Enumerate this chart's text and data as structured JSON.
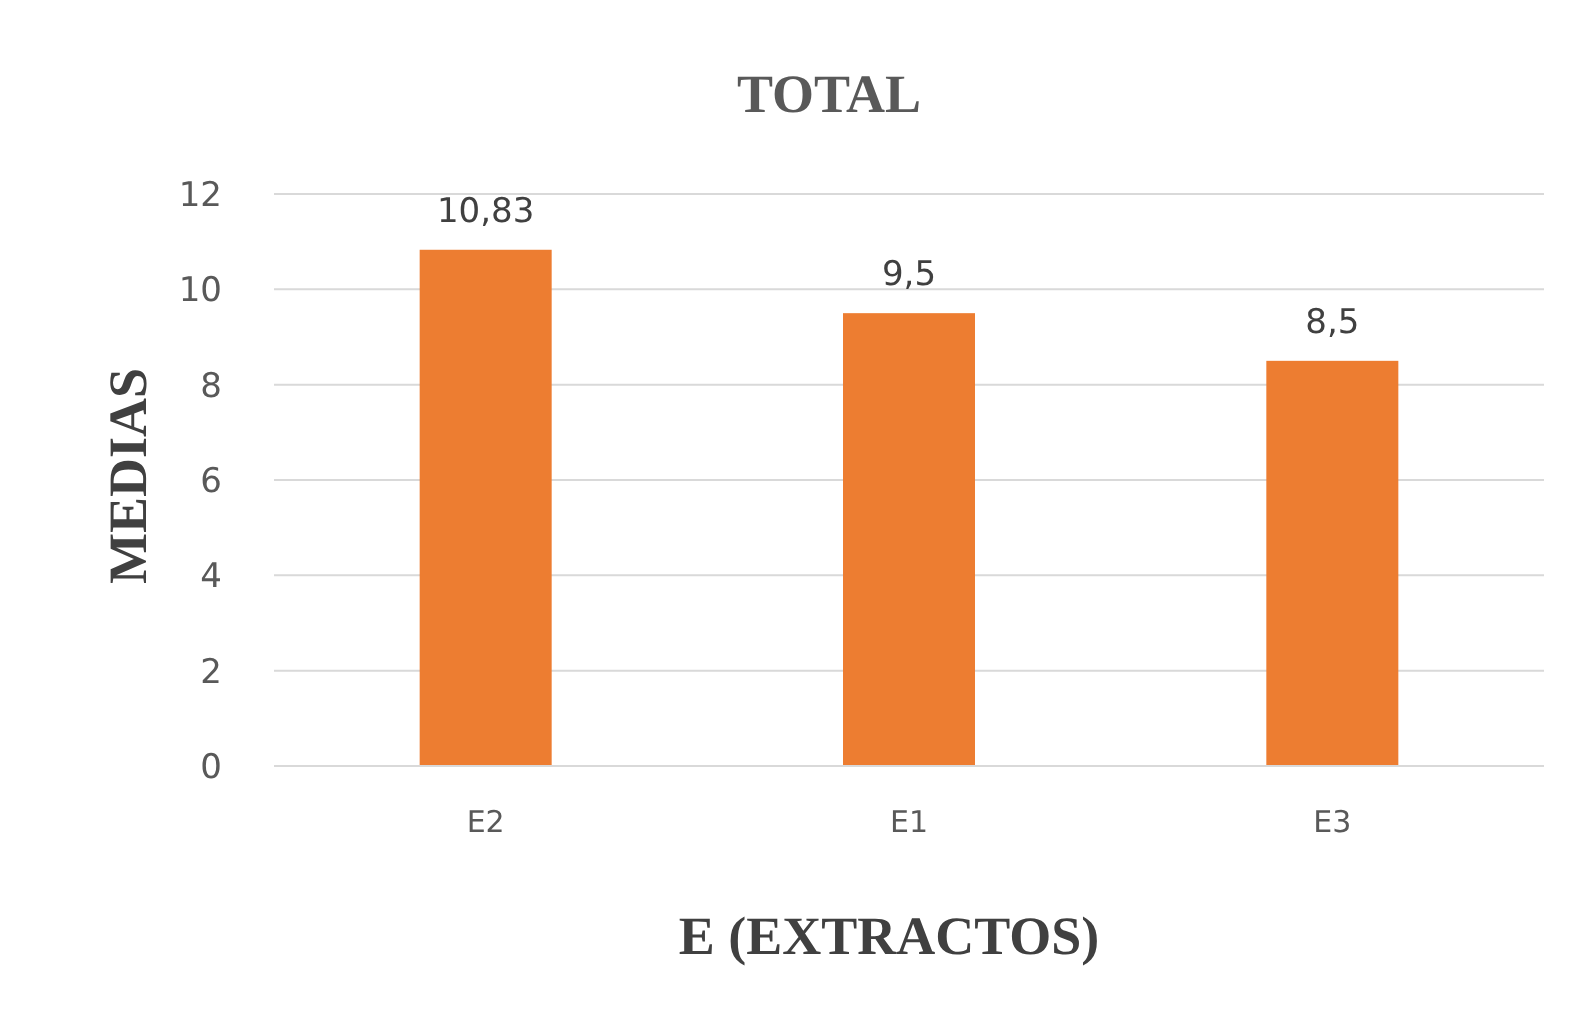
{
  "chart_data": {
    "type": "bar",
    "title": "TOTAL",
    "xlabel": "E (EXTRACTOS)",
    "ylabel": "MEDIAS",
    "categories": [
      "E2",
      "E1",
      "E3"
    ],
    "values": [
      10.83,
      9.5,
      8.5
    ],
    "value_labels": [
      "10,83",
      "9,5",
      "8,5"
    ],
    "color": "#ed7d31",
    "ylim": [
      0,
      12
    ],
    "yticks": [
      0,
      2,
      4,
      6,
      8,
      10,
      12
    ],
    "grid": "y"
  }
}
